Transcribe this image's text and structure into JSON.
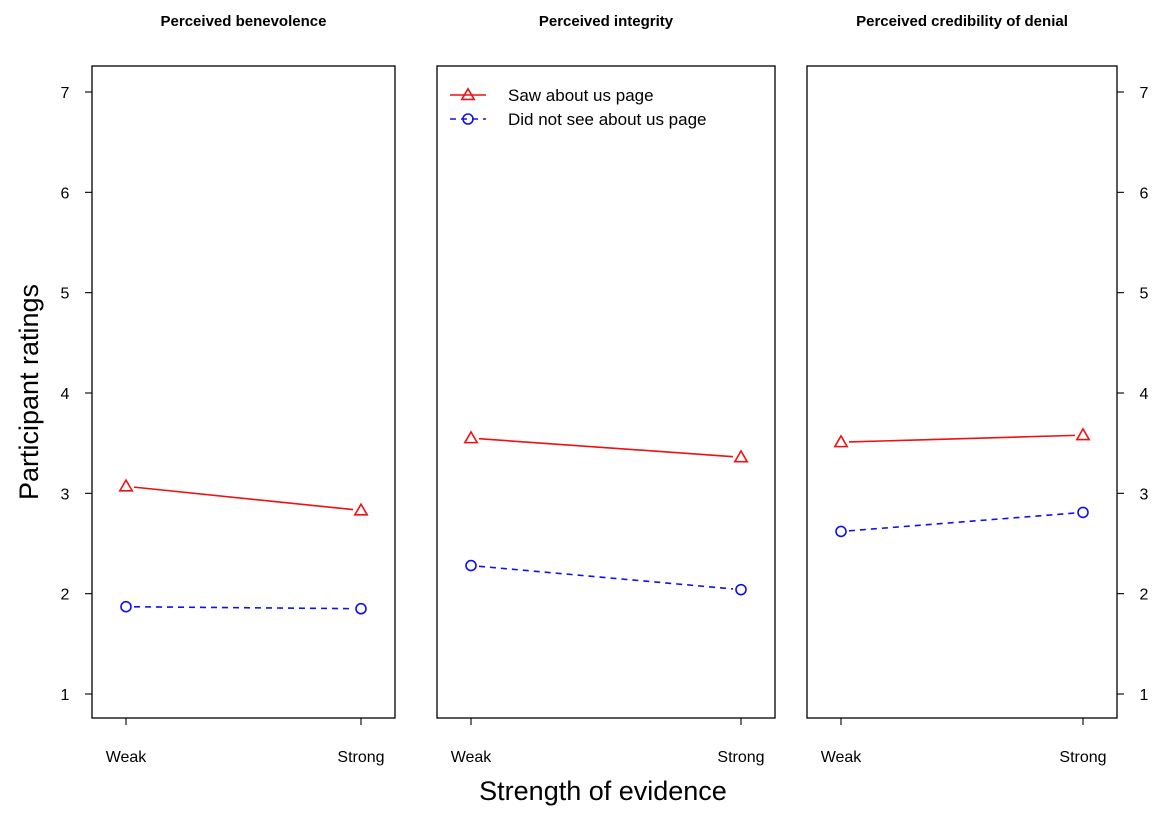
{
  "chart_data": {
    "type": "line",
    "ylabel": "Participant ratings",
    "xlabel": "Strength of evidence",
    "categories": [
      "Weak",
      "Strong"
    ],
    "ylim": [
      1,
      7
    ],
    "yticks": [
      "1",
      "2",
      "3",
      "4",
      "5",
      "6",
      "7"
    ],
    "grid": false,
    "legend": {
      "placement": "top-left of middle panel",
      "entries": [
        {
          "label": "Saw about us page",
          "color": "#ee1111",
          "marker": "triangle",
          "line": "solid"
        },
        {
          "label": "Did not see about us page",
          "color": "#1111ee",
          "marker": "circle",
          "line": "dashed"
        }
      ]
    },
    "panels": [
      {
        "title": "Perceived benevolence",
        "series": [
          {
            "name": "Saw about us page",
            "values": [
              3.07,
              2.83
            ]
          },
          {
            "name": "Did not see about us page",
            "values": [
              1.87,
              1.85
            ]
          }
        ]
      },
      {
        "title": "Perceived integrity",
        "series": [
          {
            "name": "Saw about us page",
            "values": [
              3.55,
              3.36
            ]
          },
          {
            "name": "Did not see about us page",
            "values": [
              2.28,
              2.04
            ]
          }
        ]
      },
      {
        "title": "Perceived credibility of denial",
        "series": [
          {
            "name": "Saw about us page",
            "values": [
              3.51,
              3.58
            ]
          },
          {
            "name": "Did not see about us page",
            "values": [
              2.62,
              2.81
            ]
          }
        ]
      }
    ]
  }
}
